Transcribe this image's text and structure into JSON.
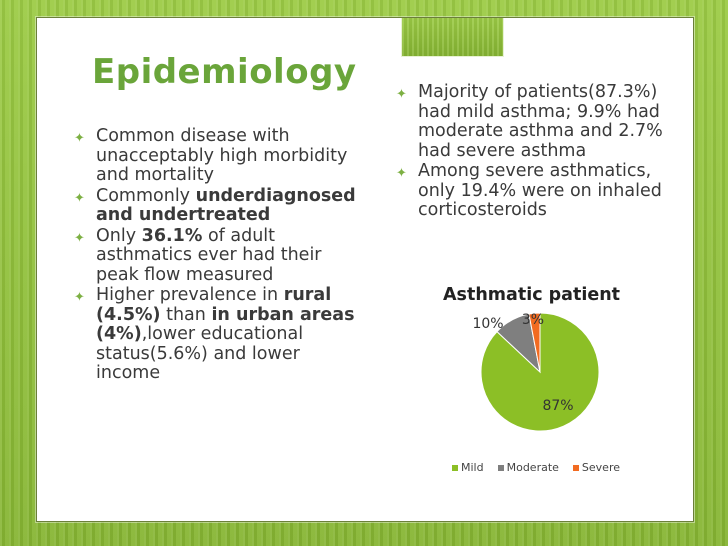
{
  "slide": {
    "title": "Epidemiology",
    "left_bullets": [
      {
        "parts": [
          {
            "t": "Common disease with unacceptably high morbidity and mortality",
            "b": false
          }
        ]
      },
      {
        "parts": [
          {
            "t": "Commonly ",
            "b": false
          },
          {
            "t": "underdiagnosed and undertreated",
            "b": true
          }
        ]
      },
      {
        "parts": [
          {
            "t": "Only ",
            "b": false
          },
          {
            "t": "36.1%",
            "b": true
          },
          {
            "t": " of adult asthmatics ever had their peak flow measured",
            "b": false
          }
        ]
      },
      {
        "parts": [
          {
            "t": "Higher prevalence in ",
            "b": false
          },
          {
            "t": "rural (4.5%)",
            "b": true
          },
          {
            "t": " than ",
            "b": false
          },
          {
            "t": "in urban areas (4%)",
            "b": true
          },
          {
            "t": ",lower educational status(5.6%) and lower income",
            "b": false
          }
        ]
      }
    ],
    "right_bullets": [
      {
        "parts": [
          {
            "t": "Majority of patients(87.3%) had mild asthma; 9.9% had moderate asthma and 2.7% had severe asthma",
            "b": false
          }
        ]
      },
      {
        "parts": [
          {
            "t": "Among severe asthmatics, only 19.4% were on inhaled corticosteroids",
            "b": false
          }
        ]
      }
    ],
    "bullet_icon": "bullet-diamond-icon"
  },
  "chart_data": {
    "type": "pie",
    "title": "Asthmatic patient",
    "categories": [
      "Mild",
      "Moderate",
      "Severe"
    ],
    "values": [
      87,
      10,
      3
    ],
    "labels": [
      "87%",
      "10%",
      "3%"
    ],
    "colors": [
      "#8cbf26",
      "#7f7f7f",
      "#f26b21"
    ],
    "legend_position": "bottom"
  },
  "colors": {
    "accent": "#6aa53a",
    "frame": "#8fbf3a"
  }
}
